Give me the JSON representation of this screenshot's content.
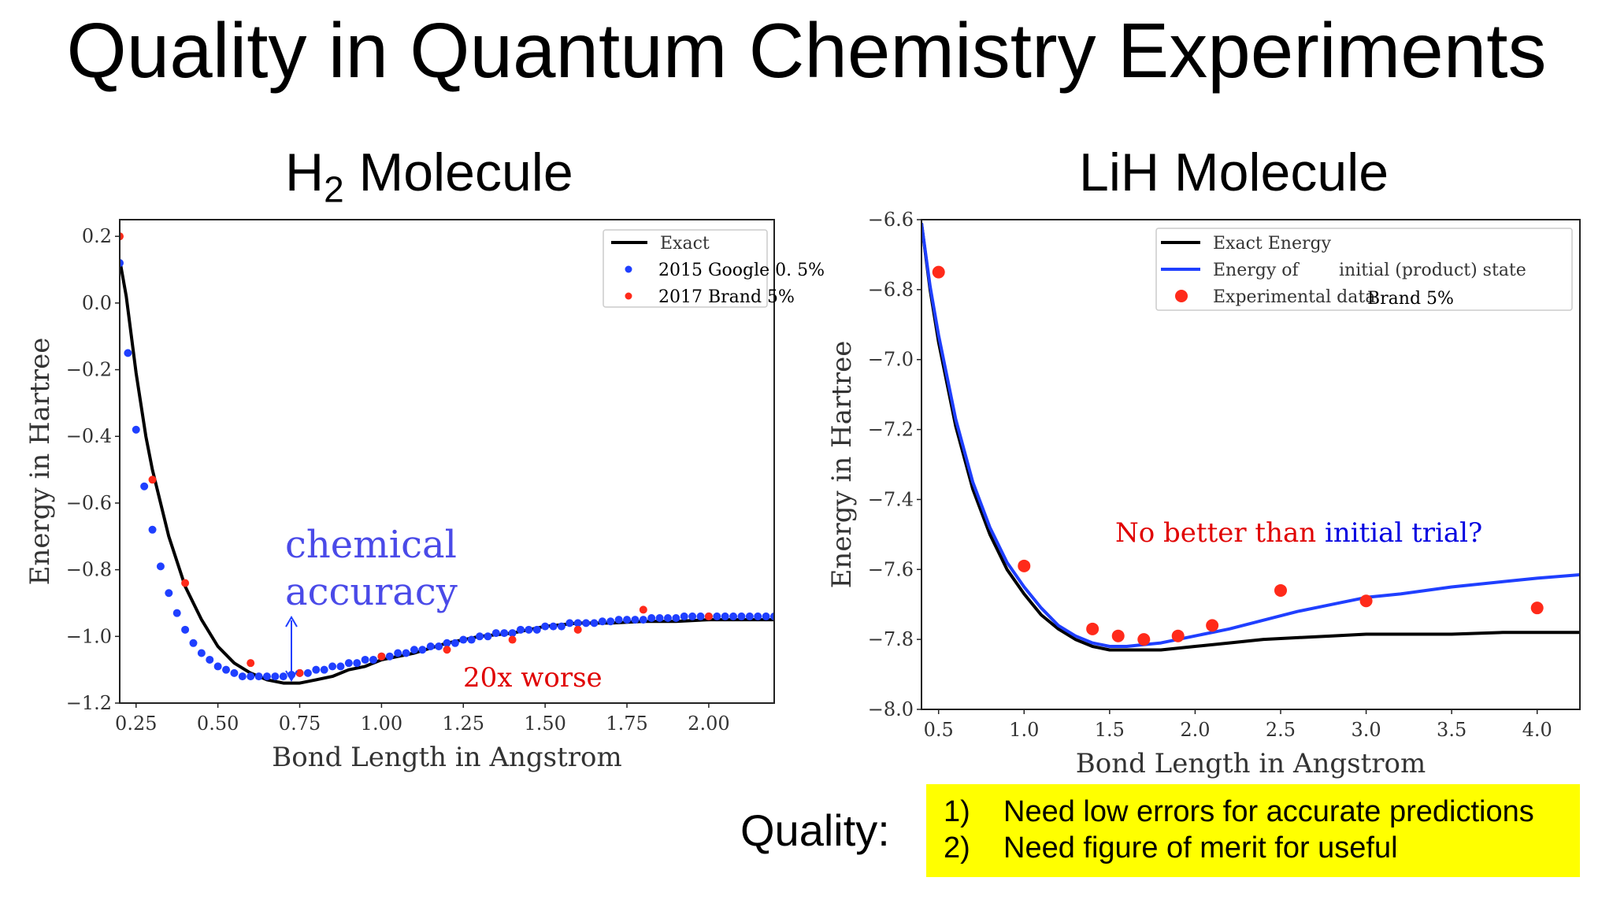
{
  "slide": {
    "title": "Quality in Quantum Chemistry Experiments",
    "h2_title_main": "H",
    "h2_title_sub": "2",
    "h2_title_rest": " Molecule",
    "lih_title": "LiH Molecule",
    "quality_label": "Quality:",
    "points": [
      {
        "num": "1)",
        "text": "Need low errors for accurate predictions"
      },
      {
        "num": "2)",
        "text": "Need figure of merit for useful"
      }
    ]
  },
  "annotations": {
    "chemical_accuracy_line1": "chemical",
    "chemical_accuracy_line2": "accuracy",
    "worse": "20x worse",
    "no_better_red": "No better than ",
    "no_better_blue": "initial trial?"
  },
  "colors": {
    "exact": "#000000",
    "google": "#1f3fff",
    "brand": "#ff2a1a",
    "product_state": "#1f3fff",
    "chem_accuracy_text": "#4a4ae8",
    "annotation_red": "#e00000",
    "annotation_blue": "#0000e0",
    "highlight": "#ffff00"
  },
  "chart_data": [
    {
      "type": "scatter",
      "xlabel": "Bond Length in Angstrom",
      "ylabel": "Energy in Hartree",
      "xlim": [
        0.2,
        2.2
      ],
      "ylim": [
        -1.2,
        0.25
      ],
      "xticks": [
        "0.25",
        "0.50",
        "0.75",
        "1.00",
        "1.25",
        "1.50",
        "1.75",
        "2.00"
      ],
      "yticks": [
        "0.2",
        "0.0",
        "−0.2",
        "−0.4",
        "−0.6",
        "−0.8",
        "−1.0",
        "−1.2"
      ],
      "legend_position": "top-right",
      "legend": [
        "Exact",
        "2015 Google 0. 5%",
        "2017 Brand 5%"
      ],
      "series": [
        {
          "name": "Exact",
          "kind": "line",
          "x": [
            0.2,
            0.22,
            0.25,
            0.28,
            0.3,
            0.35,
            0.4,
            0.45,
            0.5,
            0.55,
            0.6,
            0.65,
            0.7,
            0.75,
            0.8,
            0.85,
            0.9,
            0.95,
            1.0,
            1.1,
            1.2,
            1.3,
            1.4,
            1.5,
            1.6,
            1.7,
            1.8,
            1.9,
            2.0,
            2.1,
            2.2
          ],
          "y": [
            0.13,
            0.02,
            -0.21,
            -0.4,
            -0.5,
            -0.7,
            -0.85,
            -0.95,
            -1.03,
            -1.08,
            -1.11,
            -1.13,
            -1.14,
            -1.14,
            -1.13,
            -1.12,
            -1.1,
            -1.09,
            -1.07,
            -1.05,
            -1.02,
            -1.0,
            -0.99,
            -0.97,
            -0.96,
            -0.96,
            -0.955,
            -0.955,
            -0.95,
            -0.95,
            -0.95
          ]
        },
        {
          "name": "2015 Google 0. 5%",
          "kind": "points",
          "x": [
            0.2,
            0.225,
            0.25,
            0.275,
            0.3,
            0.325,
            0.35,
            0.375,
            0.4,
            0.425,
            0.45,
            0.475,
            0.5,
            0.525,
            0.55,
            0.575,
            0.6,
            0.625,
            0.65,
            0.675,
            0.7,
            0.725,
            0.75,
            0.775,
            0.8,
            0.825,
            0.85,
            0.875,
            0.9,
            0.925,
            0.95,
            0.975,
            1.0,
            1.025,
            1.05,
            1.075,
            1.1,
            1.125,
            1.15,
            1.175,
            1.2,
            1.225,
            1.25,
            1.275,
            1.3,
            1.325,
            1.35,
            1.375,
            1.4,
            1.425,
            1.45,
            1.475,
            1.5,
            1.525,
            1.55,
            1.575,
            1.6,
            1.625,
            1.65,
            1.675,
            1.7,
            1.725,
            1.75,
            1.775,
            1.8,
            1.825,
            1.85,
            1.875,
            1.9,
            1.925,
            1.95,
            1.975,
            2.0,
            2.025,
            2.05,
            2.075,
            2.1,
            2.125,
            2.15,
            2.175,
            2.2
          ],
          "y": [
            0.12,
            -0.15,
            -0.38,
            -0.55,
            -0.68,
            -0.79,
            -0.87,
            -0.93,
            -0.98,
            -1.02,
            -1.05,
            -1.07,
            -1.09,
            -1.1,
            -1.11,
            -1.12,
            -1.12,
            -1.12,
            -1.12,
            -1.12,
            -1.12,
            -1.115,
            -1.11,
            -1.11,
            -1.1,
            -1.1,
            -1.09,
            -1.09,
            -1.08,
            -1.08,
            -1.07,
            -1.07,
            -1.06,
            -1.06,
            -1.05,
            -1.05,
            -1.04,
            -1.04,
            -1.03,
            -1.03,
            -1.02,
            -1.02,
            -1.01,
            -1.01,
            -1.0,
            -1.0,
            -0.99,
            -0.99,
            -0.99,
            -0.98,
            -0.98,
            -0.98,
            -0.97,
            -0.97,
            -0.97,
            -0.96,
            -0.96,
            -0.96,
            -0.96,
            -0.955,
            -0.955,
            -0.95,
            -0.95,
            -0.95,
            -0.95,
            -0.945,
            -0.945,
            -0.945,
            -0.945,
            -0.94,
            -0.94,
            -0.94,
            -0.94,
            -0.94,
            -0.94,
            -0.94,
            -0.94,
            -0.94,
            -0.94,
            -0.94,
            -0.94
          ]
        },
        {
          "name": "2017 Brand 5%",
          "kind": "points",
          "x": [
            0.2,
            0.3,
            0.4,
            0.6,
            0.75,
            1.0,
            1.2,
            1.4,
            1.6,
            1.8,
            2.0
          ],
          "y": [
            0.2,
            -0.53,
            -0.84,
            -1.08,
            -1.11,
            -1.06,
            -1.04,
            -1.01,
            -0.98,
            -0.92,
            -0.94
          ]
        }
      ]
    },
    {
      "type": "scatter",
      "xlabel": "Bond Length in Angstrom",
      "ylabel": "Energy in Hartree",
      "xlim": [
        0.4,
        4.25
      ],
      "ylim": [
        -8.0,
        -6.6
      ],
      "xticks": [
        "0.5",
        "1.0",
        "1.5",
        "2.0",
        "2.5",
        "3.0",
        "3.5",
        "4.0"
      ],
      "yticks": [
        "−6.6",
        "−6.8",
        "−7.0",
        "−7.2",
        "−7.4",
        "−7.6",
        "−7.8",
        "−8.0"
      ],
      "legend_position": "top-right",
      "legend": [
        "Exact Energy",
        "Energy of",
        "initial (product) state",
        "Experimental data",
        "Brand 5%"
      ],
      "series": [
        {
          "name": "Exact Energy",
          "kind": "line",
          "x": [
            0.4,
            0.45,
            0.5,
            0.6,
            0.7,
            0.8,
            0.9,
            1.0,
            1.1,
            1.2,
            1.3,
            1.4,
            1.5,
            1.6,
            1.7,
            1.8,
            2.0,
            2.2,
            2.4,
            2.6,
            2.8,
            3.0,
            3.2,
            3.5,
            3.8,
            4.0,
            4.25
          ],
          "y": [
            -6.61,
            -6.8,
            -6.95,
            -7.19,
            -7.37,
            -7.5,
            -7.6,
            -7.67,
            -7.73,
            -7.77,
            -7.8,
            -7.82,
            -7.83,
            -7.83,
            -7.83,
            -7.83,
            -7.82,
            -7.81,
            -7.8,
            -7.795,
            -7.79,
            -7.785,
            -7.785,
            -7.785,
            -7.78,
            -7.78,
            -7.78
          ]
        },
        {
          "name": "Energy of initial (product) state",
          "kind": "line",
          "x": [
            0.4,
            0.45,
            0.5,
            0.6,
            0.7,
            0.8,
            0.9,
            1.0,
            1.1,
            1.2,
            1.3,
            1.4,
            1.5,
            1.6,
            1.7,
            1.8,
            2.0,
            2.2,
            2.4,
            2.6,
            2.8,
            3.0,
            3.2,
            3.5,
            3.8,
            4.0,
            4.25
          ],
          "y": [
            -6.61,
            -6.79,
            -6.93,
            -7.17,
            -7.35,
            -7.48,
            -7.58,
            -7.65,
            -7.71,
            -7.76,
            -7.79,
            -7.81,
            -7.82,
            -7.82,
            -7.815,
            -7.81,
            -7.79,
            -7.77,
            -7.745,
            -7.72,
            -7.7,
            -7.68,
            -7.67,
            -7.65,
            -7.635,
            -7.625,
            -7.615
          ]
        },
        {
          "name": "Experimental data",
          "kind": "points",
          "x": [
            0.5,
            1.0,
            1.4,
            1.55,
            1.7,
            1.9,
            2.1,
            2.5,
            3.0,
            4.0
          ],
          "y": [
            -6.75,
            -7.59,
            -7.77,
            -7.79,
            -7.8,
            -7.79,
            -7.76,
            -7.66,
            -7.69,
            -7.71
          ]
        }
      ]
    }
  ]
}
